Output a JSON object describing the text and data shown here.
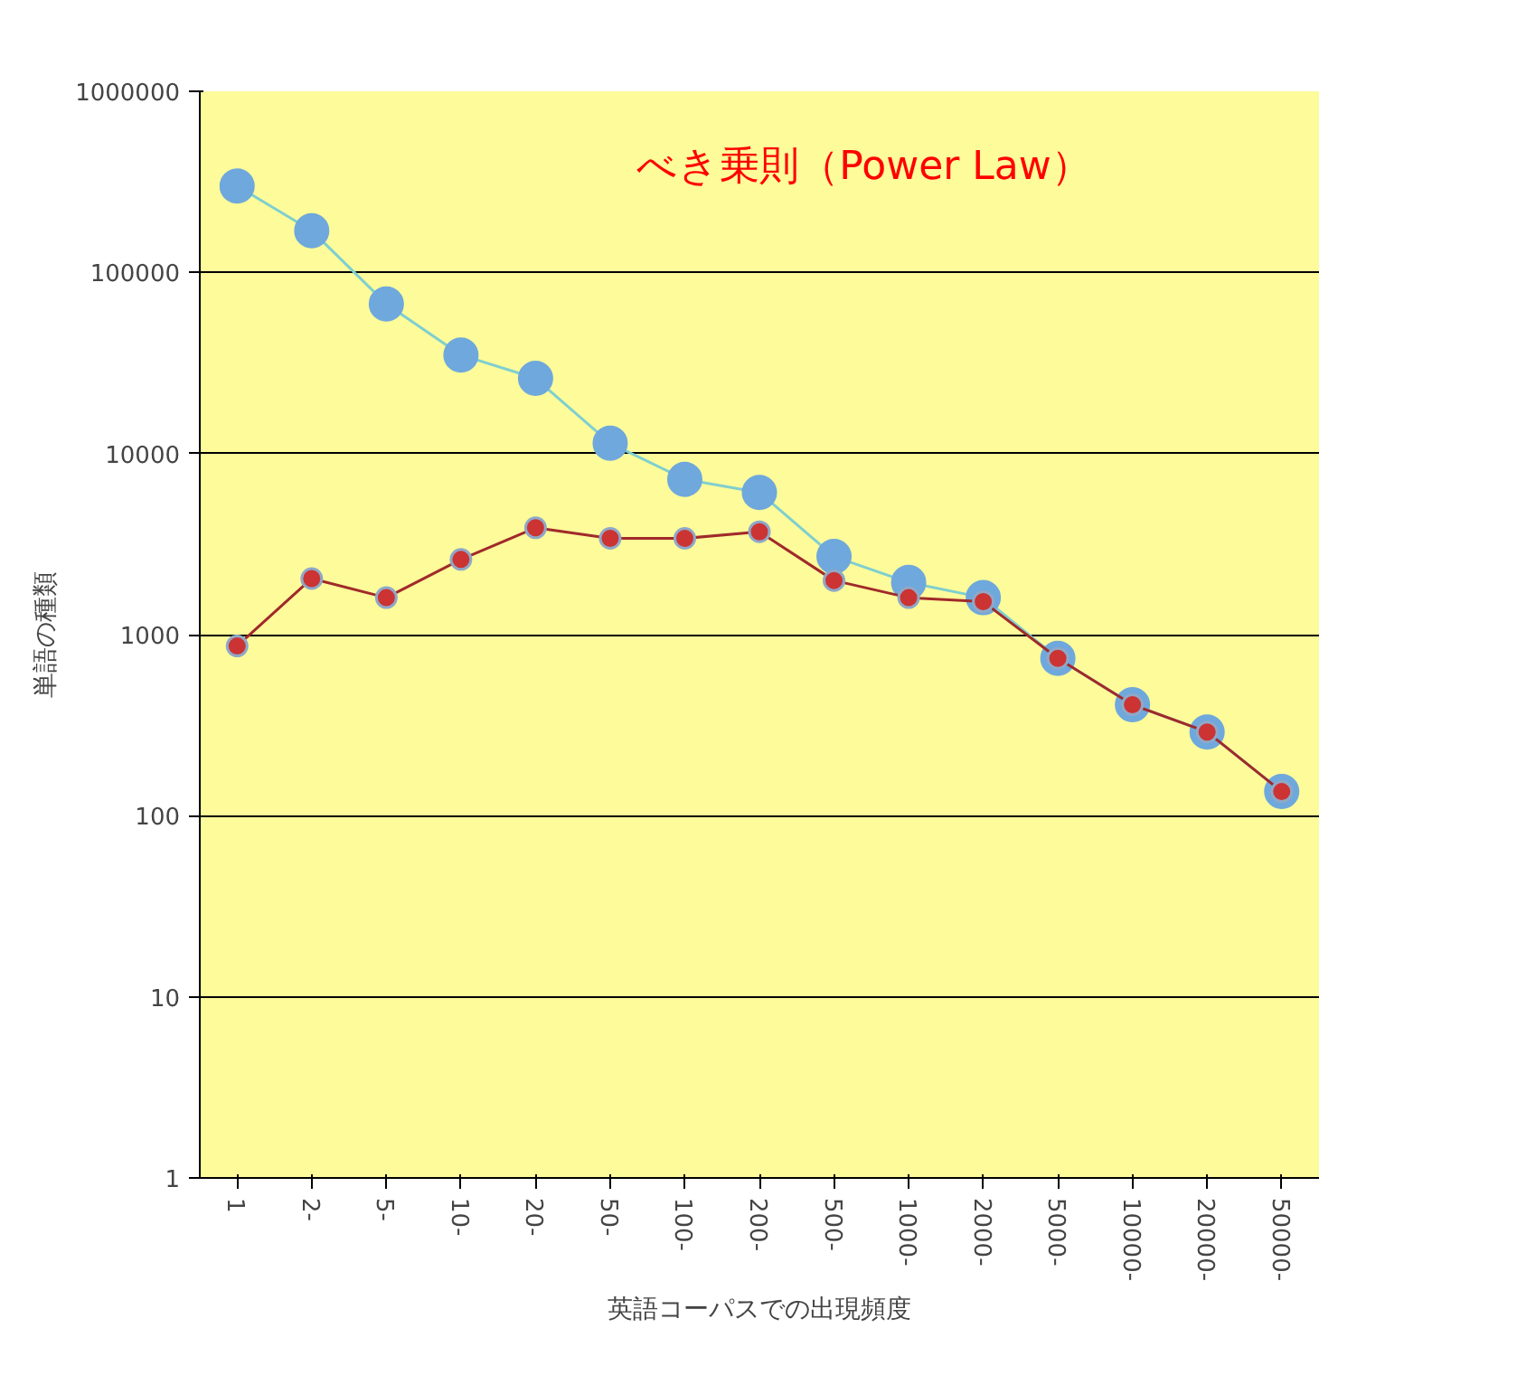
{
  "chart_data": {
    "type": "line",
    "xlabel": "英語コーパスでの出現頻度",
    "ylabel": "単語の種類",
    "annotations": [
      "べき乗則（Power Law）"
    ],
    "categories": [
      "1",
      "2-",
      "5-",
      "10-",
      "20-",
      "50-",
      "100-",
      "200-",
      "500-",
      "1000-",
      "2000-",
      "5000-",
      "10000-",
      "20000-",
      "50000-"
    ],
    "series": [
      {
        "color": "#6fa8dc",
        "values": [
          300000,
          170000,
          67000,
          35000,
          26000,
          11400,
          7200,
          6100,
          2700,
          1940,
          1600,
          740,
          410,
          290,
          136
        ]
      },
      {
        "color": "#cc3333",
        "values": [
          865,
          2040,
          1600,
          2600,
          3890,
          3400,
          3400,
          3700,
          1990,
          1600,
          1520,
          740,
          410,
          290,
          136
        ]
      }
    ],
    "log": true,
    "ylim": [
      1,
      1000000
    ],
    "yticks": [
      1,
      10,
      100,
      1000,
      10000,
      100000,
      1000000
    ],
    "grid": "y",
    "marker": "circle",
    "line_style": "solid"
  }
}
